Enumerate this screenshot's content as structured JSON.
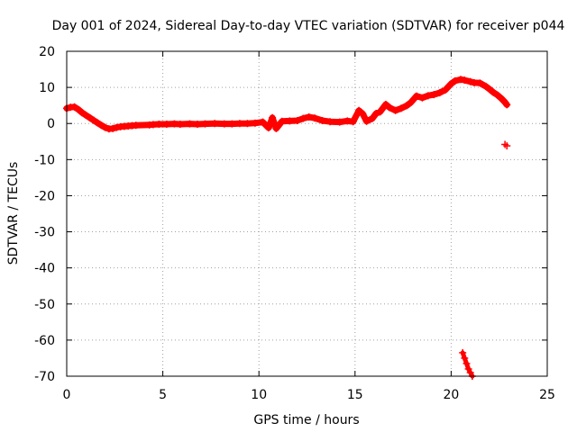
{
  "chart_data": {
    "type": "scatter",
    "title": "Day 001 of 2024, Sidereal Day-to-day VTEC variation (SDTVAR) for receiver p044",
    "xlabel": "GPS time / hours",
    "ylabel": "SDTVAR / TECUs",
    "xlim": [
      0,
      25
    ],
    "ylim": [
      -70,
      20
    ],
    "xticks": [
      0,
      5,
      10,
      15,
      20,
      25
    ],
    "yticks": [
      20,
      10,
      0,
      -10,
      -20,
      -30,
      -40,
      -50,
      -60,
      -70
    ],
    "grid": true,
    "grid_style": "dotted",
    "marker": "+",
    "colors": {
      "series": "#ff0000",
      "axes": "#000000",
      "grid": "#a0a0a0",
      "background": "#ffffff"
    },
    "series": [
      {
        "name": "SDTVAR",
        "points": [
          [
            0.0,
            4.2
          ],
          [
            0.2,
            4.5
          ],
          [
            0.4,
            4.6
          ],
          [
            0.6,
            3.9
          ],
          [
            0.8,
            3.0
          ],
          [
            1.0,
            2.3
          ],
          [
            1.2,
            1.6
          ],
          [
            1.4,
            0.9
          ],
          [
            1.6,
            0.2
          ],
          [
            1.8,
            -0.5
          ],
          [
            2.0,
            -1.1
          ],
          [
            2.2,
            -1.5
          ],
          [
            2.4,
            -1.4
          ],
          [
            2.6,
            -1.1
          ],
          [
            2.8,
            -0.9
          ],
          [
            3.0,
            -0.8
          ],
          [
            3.2,
            -0.7
          ],
          [
            3.4,
            -0.6
          ],
          [
            3.6,
            -0.5
          ],
          [
            4.3,
            -0.4
          ],
          [
            4.5,
            -0.3
          ],
          [
            4.8,
            -0.2
          ],
          [
            5.2,
            -0.2
          ],
          [
            5.6,
            -0.1
          ],
          [
            5.9,
            -0.2
          ],
          [
            6.4,
            -0.1
          ],
          [
            6.8,
            -0.2
          ],
          [
            7.2,
            -0.1
          ],
          [
            7.7,
            0.0
          ],
          [
            8.2,
            -0.1
          ],
          [
            8.6,
            -0.1
          ],
          [
            9.0,
            0.0
          ],
          [
            9.4,
            0.0
          ],
          [
            9.8,
            0.1
          ],
          [
            10.2,
            0.4
          ],
          [
            10.5,
            -1.2
          ],
          [
            10.7,
            1.6
          ],
          [
            10.9,
            -1.4
          ],
          [
            11.2,
            0.6
          ],
          [
            11.6,
            0.7
          ],
          [
            12.0,
            0.8
          ],
          [
            12.3,
            1.4
          ],
          [
            12.6,
            1.8
          ],
          [
            12.9,
            1.5
          ],
          [
            13.3,
            0.8
          ],
          [
            13.7,
            0.5
          ],
          [
            14.2,
            0.4
          ],
          [
            14.6,
            0.7
          ],
          [
            14.9,
            0.5
          ],
          [
            15.2,
            3.6
          ],
          [
            15.4,
            2.7
          ],
          [
            15.6,
            0.6
          ],
          [
            15.9,
            1.4
          ],
          [
            16.1,
            2.8
          ],
          [
            16.3,
            3.2
          ],
          [
            16.6,
            5.3
          ],
          [
            16.8,
            4.4
          ],
          [
            17.1,
            3.6
          ],
          [
            17.4,
            4.2
          ],
          [
            17.7,
            5.0
          ],
          [
            17.9,
            5.8
          ],
          [
            18.2,
            7.6
          ],
          [
            18.5,
            7.1
          ],
          [
            18.8,
            7.7
          ],
          [
            19.1,
            8.0
          ],
          [
            19.4,
            8.5
          ],
          [
            19.7,
            9.3
          ],
          [
            20.0,
            11.0
          ],
          [
            20.2,
            11.8
          ],
          [
            20.5,
            12.2
          ],
          [
            20.7,
            12.0
          ],
          [
            21.0,
            11.6
          ],
          [
            21.2,
            11.3
          ],
          [
            21.5,
            11.2
          ],
          [
            21.8,
            10.3
          ],
          [
            22.0,
            9.5
          ],
          [
            22.2,
            8.6
          ],
          [
            22.4,
            7.9
          ],
          [
            22.6,
            7.0
          ],
          [
            22.8,
            5.9
          ],
          [
            22.9,
            5.2
          ],
          [
            22.8,
            -5.8
          ],
          [
            22.9,
            -6.2
          ],
          [
            20.6,
            -63.5
          ],
          [
            20.7,
            -65.0
          ],
          [
            20.8,
            -66.5
          ],
          [
            20.9,
            -68.0
          ],
          [
            21.0,
            -69.0
          ],
          [
            21.1,
            -70.0
          ]
        ]
      }
    ]
  }
}
